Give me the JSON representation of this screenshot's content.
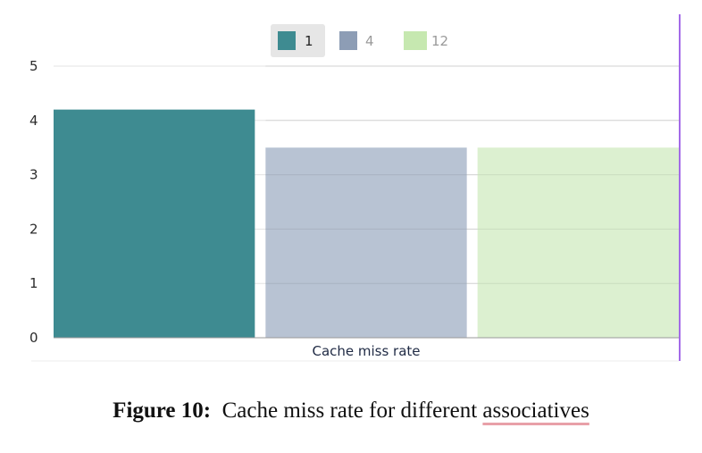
{
  "chart_data": {
    "type": "bar",
    "categories": [
      "Cache miss rate"
    ],
    "series": [
      {
        "name": "1",
        "values": [
          4.2
        ],
        "color": "#3e8b91"
      },
      {
        "name": "4",
        "values": [
          3.5
        ],
        "color": "#b8c3d3"
      },
      {
        "name": "12",
        "values": [
          3.5
        ],
        "color": "#dcf0d0"
      }
    ],
    "legend": {
      "items": [
        "1",
        "4",
        "12"
      ],
      "swatch_colors": [
        "#3e8b91",
        "#8d9db5",
        "#c6e8b0"
      ],
      "placement": "top-center",
      "active": "1"
    },
    "yticks": [
      "0",
      "1",
      "2",
      "3",
      "4",
      "5"
    ],
    "ylim": [
      0,
      5
    ],
    "grid": true,
    "xlabel": "Cache miss rate",
    "colors": {
      "gridline": "#e3e3e3",
      "axis": "#9a9a9a",
      "cursor": "#a46be8"
    }
  },
  "caption": {
    "label": "Figure 10:",
    "text_before": "Cache miss rate for different ",
    "text_underlined": "associatives"
  }
}
